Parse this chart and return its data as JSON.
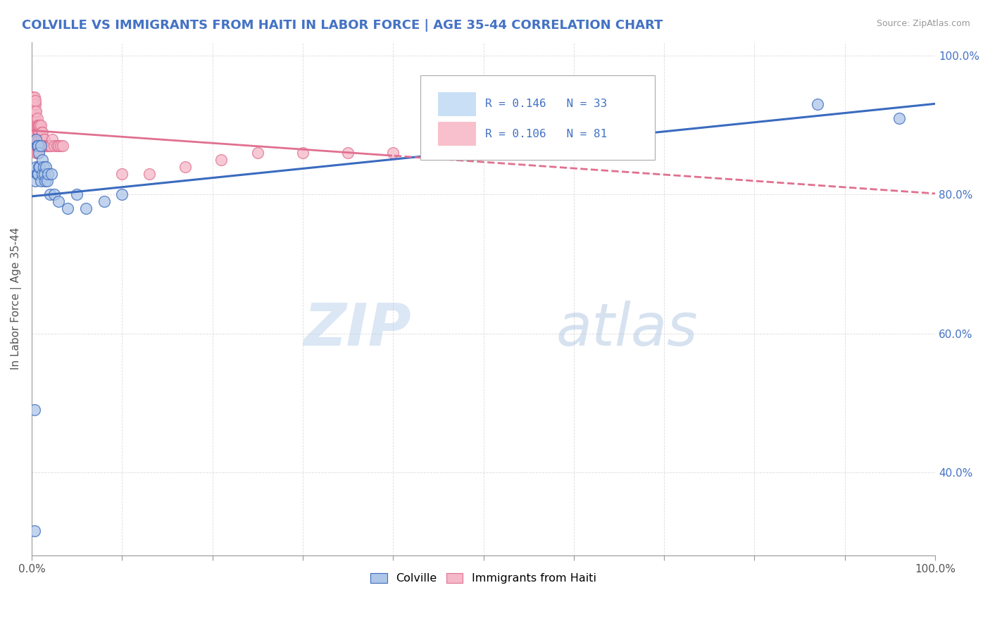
{
  "title": "COLVILLE VS IMMIGRANTS FROM HAITI IN LABOR FORCE | AGE 35-44 CORRELATION CHART",
  "source": "Source: ZipAtlas.com",
  "ylabel": "In Labor Force | Age 35-44",
  "watermark": "ZIPatlas",
  "colville_R": 0.146,
  "colville_N": 33,
  "haiti_R": 0.106,
  "haiti_N": 81,
  "colville_color": "#aec6e8",
  "haiti_color": "#f4b8c8",
  "colville_line_color": "#3a6bbf",
  "haiti_line_color": "#e07090",
  "legend_box_color": "#c8dff5",
  "legend_haiti_box_color": "#f8c0cc",
  "text_blue": "#4472c4",
  "title_color": "#4472c4",
  "colville_x": [
    0.003,
    0.003,
    0.004,
    0.005,
    0.005,
    0.006,
    0.006,
    0.007,
    0.007,
    0.008,
    0.008,
    0.009,
    0.01,
    0.01,
    0.012,
    0.012,
    0.013,
    0.014,
    0.015,
    0.016,
    0.017,
    0.018,
    0.02,
    0.022,
    0.025,
    0.03,
    0.04,
    0.05,
    0.06,
    0.08,
    0.1,
    0.87,
    0.96
  ],
  "colville_y": [
    0.315,
    0.49,
    0.82,
    0.84,
    0.88,
    0.83,
    0.87,
    0.83,
    0.87,
    0.84,
    0.86,
    0.84,
    0.82,
    0.87,
    0.83,
    0.85,
    0.84,
    0.83,
    0.82,
    0.84,
    0.82,
    0.83,
    0.8,
    0.83,
    0.8,
    0.79,
    0.78,
    0.8,
    0.78,
    0.79,
    0.8,
    0.93,
    0.91
  ],
  "haiti_x": [
    0.001,
    0.001,
    0.001,
    0.002,
    0.002,
    0.002,
    0.002,
    0.002,
    0.002,
    0.002,
    0.003,
    0.003,
    0.003,
    0.003,
    0.003,
    0.003,
    0.003,
    0.003,
    0.004,
    0.004,
    0.004,
    0.004,
    0.004,
    0.004,
    0.004,
    0.004,
    0.005,
    0.005,
    0.005,
    0.005,
    0.005,
    0.005,
    0.006,
    0.006,
    0.006,
    0.006,
    0.006,
    0.007,
    0.007,
    0.007,
    0.007,
    0.008,
    0.008,
    0.008,
    0.008,
    0.009,
    0.009,
    0.009,
    0.01,
    0.01,
    0.01,
    0.011,
    0.011,
    0.012,
    0.012,
    0.013,
    0.013,
    0.014,
    0.015,
    0.016,
    0.017,
    0.018,
    0.019,
    0.02,
    0.021,
    0.023,
    0.025,
    0.028,
    0.03,
    0.032,
    0.034,
    0.1,
    0.13,
    0.17,
    0.21,
    0.25,
    0.3,
    0.35,
    0.4,
    0.52,
    0.6
  ],
  "haiti_y": [
    0.93,
    0.935,
    0.94,
    0.9,
    0.91,
    0.92,
    0.925,
    0.93,
    0.935,
    0.94,
    0.88,
    0.89,
    0.9,
    0.91,
    0.92,
    0.93,
    0.935,
    0.94,
    0.87,
    0.88,
    0.89,
    0.9,
    0.91,
    0.92,
    0.93,
    0.935,
    0.86,
    0.87,
    0.88,
    0.89,
    0.9,
    0.92,
    0.86,
    0.87,
    0.88,
    0.9,
    0.91,
    0.87,
    0.88,
    0.89,
    0.9,
    0.87,
    0.88,
    0.89,
    0.9,
    0.88,
    0.89,
    0.9,
    0.87,
    0.88,
    0.9,
    0.88,
    0.89,
    0.87,
    0.89,
    0.87,
    0.88,
    0.88,
    0.87,
    0.87,
    0.87,
    0.87,
    0.87,
    0.87,
    0.87,
    0.88,
    0.87,
    0.87,
    0.87,
    0.87,
    0.87,
    0.83,
    0.83,
    0.84,
    0.85,
    0.86,
    0.86,
    0.86,
    0.86,
    0.87,
    0.87
  ],
  "xlim": [
    0.0,
    1.0
  ],
  "ylim": [
    0.28,
    1.02
  ],
  "yticks": [
    0.4,
    0.6,
    0.8,
    1.0
  ],
  "ytick_labels": [
    "40.0%",
    "60.0%",
    "80.0%",
    "100.0%"
  ],
  "xtick_positions": [
    0.0,
    0.1,
    0.2,
    0.3,
    0.4,
    0.5,
    0.6,
    0.7,
    0.8,
    0.9,
    1.0
  ],
  "xtick_labels_show": [
    "0.0%",
    "",
    "",
    "",
    "",
    "",
    "",
    "",
    "",
    "",
    "100.0%"
  ],
  "background_color": "#ffffff"
}
